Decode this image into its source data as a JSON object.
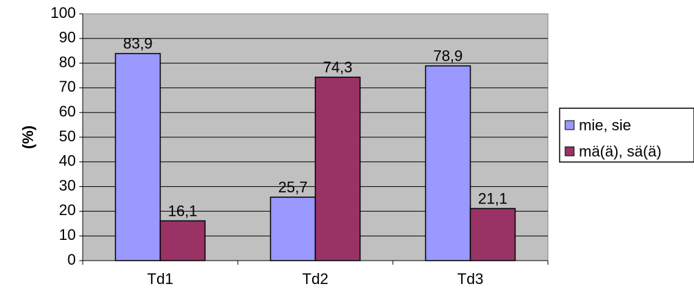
{
  "chart_data": {
    "type": "bar",
    "ylabel": "(%)",
    "ylim": [
      0,
      100
    ],
    "ytick_step": 10,
    "categories": [
      "Td1",
      "Td2",
      "Td3"
    ],
    "series": [
      {
        "name": "mie, sie",
        "values": [
          83.9,
          25.7,
          78.9
        ],
        "labels": [
          "83,9",
          "25,7",
          "78,9"
        ],
        "color": "#9999FF"
      },
      {
        "name": "mä(ä), sä(ä)",
        "values": [
          16.1,
          74.3,
          21.1
        ],
        "labels": [
          "16,1",
          "74,3",
          "21,1"
        ],
        "color": "#993366"
      }
    ],
    "plot_background": "#C0C0C0",
    "grid": true,
    "legend_position": "right"
  }
}
